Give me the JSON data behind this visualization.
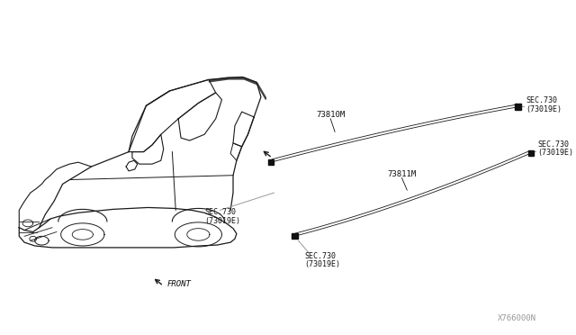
{
  "bg_color": "#ffffff",
  "line_color": "#1a1a1a",
  "gray_color": "#999999",
  "dark_color": "#111111",
  "med_color": "#555555",
  "fig_width": 6.4,
  "fig_height": 3.72,
  "diagram_id": "X766000N",
  "part1_label": "73810M",
  "part2_label": "73811M",
  "front_label": "FRONT",
  "sec_text1": "SEC.730",
  "sec_text2": "(73019E)"
}
